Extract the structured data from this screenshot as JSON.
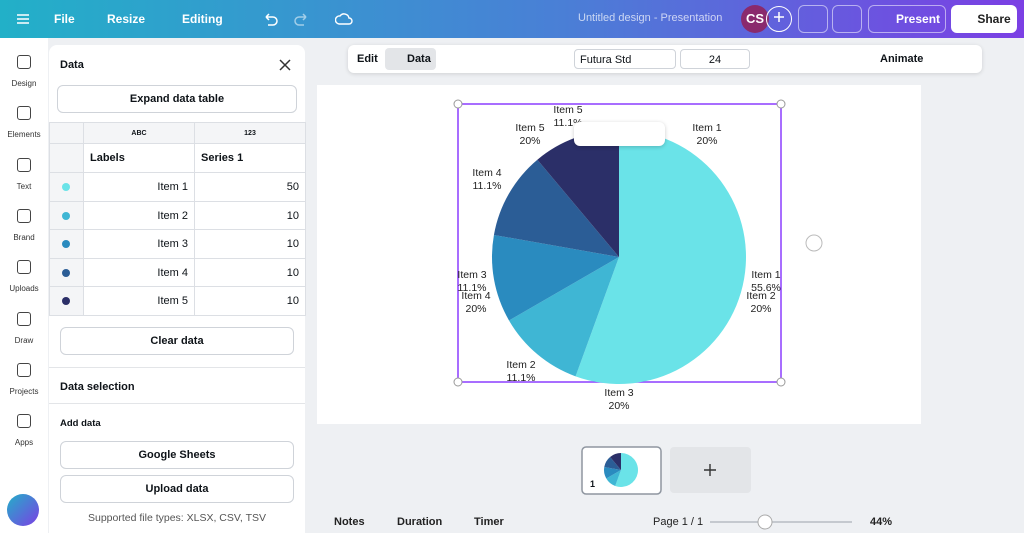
{
  "top_bar": {
    "file": "File",
    "resize": "Resize",
    "editing": "Editing",
    "doc_title": "Untitled design - Presentation",
    "avatar": "CS",
    "present": "Present",
    "share": "Share"
  },
  "toolbar": {
    "edit": "Edit",
    "data": "Data",
    "font": "Futura Std",
    "font_size": "24",
    "animate": "Animate"
  },
  "sidebar": [
    "Design",
    "Elements",
    "Text",
    "Brand",
    "Uploads",
    "Draw",
    "Projects",
    "Apps"
  ],
  "data_panel": {
    "title": "Data",
    "expand": "Expand data table",
    "column_types": [
      "ABC",
      "123"
    ],
    "headers": [
      "Labels",
      "Series 1"
    ],
    "rows": [
      [
        "Item 1",
        50
      ],
      [
        "Item 2",
        10
      ],
      [
        "Item 3",
        10
      ],
      [
        "Item 4",
        10
      ],
      [
        "Item 5",
        10
      ]
    ],
    "row_colors": [
      "#6ae3e8",
      "#3fb6d4",
      "#2a8bbf",
      "#2b5d96",
      "#2b2f68"
    ],
    "clear": "Clear data",
    "selection": "Data selection",
    "add_data": "Add data",
    "google_sheets": "Google Sheets",
    "upload": "Upload data",
    "supported": "Supported file types: XLSX, CSV, TSV"
  },
  "pie_labels": [
    {
      "name": "Item 5",
      "label": "11.1%"
    },
    {
      "name": "Item 5",
      "label": "20%"
    },
    {
      "name": "Item 1",
      "label": "20%"
    },
    {
      "name": "Item 4",
      "label": "11.1%"
    },
    {
      "name": "Item 3",
      "label": "11.1%"
    },
    {
      "name": "Item 4",
      "label": "20%"
    },
    {
      "name": "Item 1",
      "label": "55.6%"
    },
    {
      "name": "Item 2",
      "label": "20%"
    },
    {
      "name": "Item 2",
      "label": "11.1%"
    },
    {
      "name": "Item 3",
      "label": "20%"
    }
  ],
  "bottom_bar": {
    "notes": "Notes",
    "duration": "Duration",
    "timer": "Timer",
    "page": "Page 1 / 1",
    "zoom": "44%",
    "thumb_number": "1"
  }
}
